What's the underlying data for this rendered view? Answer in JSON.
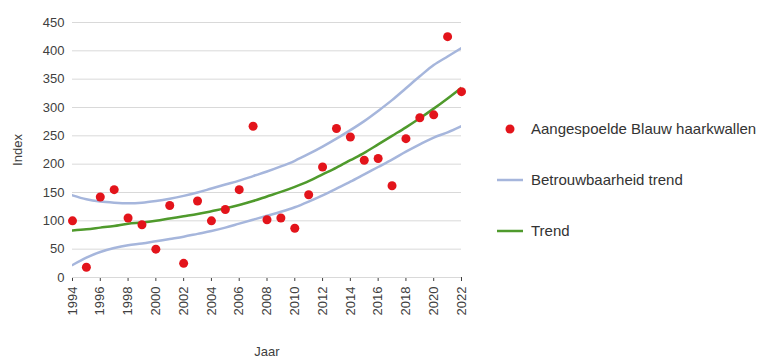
{
  "chart_data": {
    "type": "line",
    "x_label": "Jaar",
    "y_label": "Index",
    "x": [
      1994,
      1995,
      1996,
      1997,
      1998,
      1999,
      2000,
      2001,
      2002,
      2003,
      2004,
      2005,
      2006,
      2007,
      2008,
      2009,
      2010,
      2011,
      2012,
      2013,
      2014,
      2015,
      2016,
      2017,
      2018,
      2019,
      2020,
      2021,
      2022
    ],
    "series": [
      {
        "name": "Aangespoelde Blauw haarkwallen",
        "type": "scatter",
        "marker": "circle",
        "color": "#e3141b",
        "values": [
          100,
          18,
          142,
          155,
          105,
          93,
          50,
          127,
          25,
          135,
          100,
          120,
          155,
          267,
          102,
          105,
          87,
          146,
          195,
          263,
          248,
          207,
          210,
          162,
          245,
          282,
          287,
          425,
          328
        ]
      },
      {
        "name": "Betrouwbaarheid trend",
        "type": "band",
        "color": "#a6b6dc",
        "lower": [
          22,
          35,
          45,
          52,
          57,
          60,
          64,
          68,
          72,
          77,
          82,
          88,
          95,
          102,
          109,
          116,
          124,
          134,
          145,
          157,
          169,
          182,
          195,
          208,
          222,
          235,
          247,
          256,
          267
        ],
        "upper": [
          145,
          138,
          134,
          132,
          131,
          132,
          135,
          139,
          144,
          150,
          157,
          164,
          171,
          179,
          187,
          196,
          206,
          218,
          231,
          245,
          260,
          276,
          294,
          313,
          334,
          355,
          375,
          390,
          405
        ]
      },
      {
        "name": "Trend",
        "type": "line",
        "color": "#4f9a2c",
        "values": [
          83,
          85,
          88,
          91,
          95,
          97,
          100,
          104,
          108,
          112,
          117,
          122,
          128,
          135,
          143,
          151,
          160,
          170,
          182,
          194,
          207,
          220,
          235,
          250,
          265,
          281,
          298,
          316,
          335
        ]
      }
    ],
    "xlim": [
      1994,
      2022
    ],
    "xticks": [
      1994,
      1996,
      1998,
      2000,
      2002,
      2004,
      2006,
      2008,
      2010,
      2012,
      2014,
      2016,
      2018,
      2020,
      2022
    ],
    "ylim": [
      0,
      450
    ],
    "yticks": [
      0,
      50,
      100,
      150,
      200,
      250,
      300,
      350,
      400,
      450
    ],
    "grid": true,
    "legend": "right"
  }
}
